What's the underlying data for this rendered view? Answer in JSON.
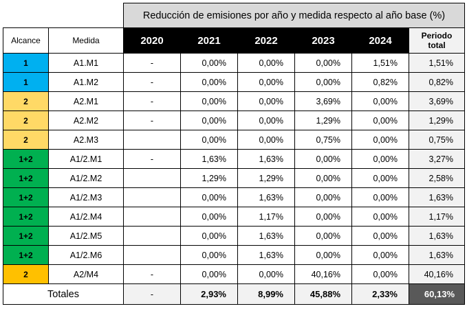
{
  "title": "Reducción de emisiones por año y medida respecto al año base (%)",
  "headers": {
    "scope": "Alcance",
    "measure": "Medida",
    "years": [
      "2020",
      "2021",
      "2022",
      "2023",
      "2024"
    ],
    "period_line1": "Periodo",
    "period_line2": "total"
  },
  "scope_colors": {
    "1": "#00b0f0",
    "2": "#ffd966",
    "1+2": "#00b050",
    "2-highlight": "#ffc000"
  },
  "rows": [
    {
      "scope": "1",
      "color": "#00b0f0",
      "measure": "A1.M1",
      "y2020": "-",
      "y2021": "0,00%",
      "y2022": "0,00%",
      "y2023": "0,00%",
      "y2024": "1,51%",
      "total": "1,51%"
    },
    {
      "scope": "1",
      "color": "#00b0f0",
      "measure": "A1.M2",
      "y2020": "-",
      "y2021": "0,00%",
      "y2022": "0,00%",
      "y2023": "0,00%",
      "y2024": "0,82%",
      "total": "0,82%"
    },
    {
      "scope": "2",
      "color": "#ffd966",
      "measure": "A2.M1",
      "y2020": "-",
      "y2021": "0,00%",
      "y2022": "0,00%",
      "y2023": "3,69%",
      "y2024": "0,00%",
      "total": "3,69%"
    },
    {
      "scope": "2",
      "color": "#ffd966",
      "measure": "A2.M2",
      "y2020": "-",
      "y2021": "0,00%",
      "y2022": "0,00%",
      "y2023": "1,29%",
      "y2024": "0,00%",
      "total": "1,29%"
    },
    {
      "scope": "2",
      "color": "#ffd966",
      "measure": "A2.M3",
      "y2020": "",
      "y2021": "0,00%",
      "y2022": "0,00%",
      "y2023": "0,75%",
      "y2024": "0,00%",
      "total": "0,75%"
    },
    {
      "scope": "1+2",
      "color": "#00b050",
      "measure": "A1/2.M1",
      "y2020": "-",
      "y2021": "1,63%",
      "y2022": "1,63%",
      "y2023": "0,00%",
      "y2024": "0,00%",
      "total": "3,27%"
    },
    {
      "scope": "1+2",
      "color": "#00b050",
      "measure": "A1/2.M2",
      "y2020": "",
      "y2021": "1,29%",
      "y2022": "1,29%",
      "y2023": "0,00%",
      "y2024": "0,00%",
      "total": "2,58%"
    },
    {
      "scope": "1+2",
      "color": "#00b050",
      "measure": "A1/2.M3",
      "y2020": "",
      "y2021": "0,00%",
      "y2022": "1,63%",
      "y2023": "0,00%",
      "y2024": "0,00%",
      "total": "1,63%"
    },
    {
      "scope": "1+2",
      "color": "#00b050",
      "measure": "A1/2.M4",
      "y2020": "",
      "y2021": "0,00%",
      "y2022": "1,17%",
      "y2023": "0,00%",
      "y2024": "0,00%",
      "total": "1,17%"
    },
    {
      "scope": "1+2",
      "color": "#00b050",
      "measure": "A1/2.M5",
      "y2020": "",
      "y2021": "0,00%",
      "y2022": "1,63%",
      "y2023": "0,00%",
      "y2024": "0,00%",
      "total": "1,63%"
    },
    {
      "scope": "1+2",
      "color": "#00b050",
      "measure": "A1/2.M6",
      "y2020": "",
      "y2021": "0,00%",
      "y2022": "1,63%",
      "y2023": "0,00%",
      "y2024": "0,00%",
      "total": "1,63%"
    },
    {
      "scope": "2",
      "color": "#ffc000",
      "measure": "A2/M4",
      "y2020": "-",
      "y2021": "0,00%",
      "y2022": "0,00%",
      "y2023": "40,16%",
      "y2024": "0,00%",
      "total": "40,16%"
    }
  ],
  "totals": {
    "label": "Totales",
    "y2020": "-",
    "y2021": "2,93%",
    "y2022": "8,99%",
    "y2023": "45,88%",
    "y2024": "2,33%",
    "total": "60,13%"
  }
}
